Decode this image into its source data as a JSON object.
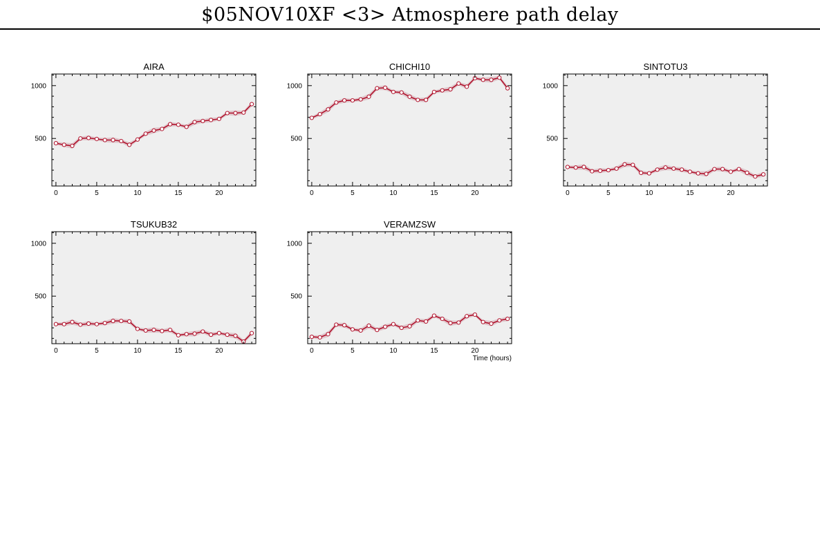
{
  "page_title": "$05NOV10XF <3>  Atmosphere path delay",
  "colors": {
    "panel_bg": "#efefef",
    "line": "#b0102a",
    "band": "#d9b9c0",
    "marker_fill": "#ffffff"
  },
  "chart_data": [
    {
      "type": "line",
      "title": "AIRA",
      "xlabel": "",
      "ylabel": "",
      "xlim": [
        -0.5,
        24.5
      ],
      "ylim": [
        50,
        1110
      ],
      "xticks": [
        0,
        5,
        10,
        15,
        20
      ],
      "yticks": [
        500,
        1000
      ],
      "x": [
        0,
        1,
        2,
        3,
        4,
        5,
        6,
        7,
        8,
        9,
        10,
        11,
        12,
        13,
        14,
        15,
        16,
        17,
        18,
        19,
        20,
        21,
        22,
        23,
        24
      ],
      "y": [
        455,
        440,
        430,
        500,
        505,
        495,
        485,
        485,
        475,
        440,
        490,
        545,
        575,
        590,
        635,
        630,
        610,
        655,
        665,
        675,
        685,
        740,
        740,
        745,
        825
      ]
    },
    {
      "type": "line",
      "title": "CHICHI10",
      "xlabel": "",
      "ylabel": "",
      "xlim": [
        -0.5,
        24.5
      ],
      "ylim": [
        50,
        1110
      ],
      "xticks": [
        0,
        5,
        10,
        15,
        20
      ],
      "yticks": [
        500,
        1000
      ],
      "x": [
        0,
        1,
        2,
        3,
        4,
        5,
        6,
        7,
        8,
        9,
        10,
        11,
        12,
        13,
        14,
        15,
        16,
        17,
        18,
        19,
        20,
        21,
        22,
        23,
        24
      ],
      "y": [
        695,
        730,
        775,
        840,
        860,
        860,
        870,
        895,
        975,
        980,
        940,
        935,
        895,
        865,
        865,
        940,
        955,
        965,
        1020,
        990,
        1070,
        1055,
        1055,
        1075,
        975
      ]
    },
    {
      "type": "line",
      "title": "SINTOTU3",
      "xlabel": "",
      "ylabel": "",
      "xlim": [
        -0.5,
        24.5
      ],
      "ylim": [
        50,
        1110
      ],
      "xticks": [
        0,
        5,
        10,
        15,
        20
      ],
      "yticks": [
        500,
        1000
      ],
      "x": [
        0,
        1,
        2,
        3,
        4,
        5,
        6,
        7,
        8,
        9,
        10,
        11,
        12,
        13,
        14,
        15,
        16,
        17,
        18,
        19,
        20,
        21,
        22,
        23,
        24
      ],
      "y": [
        230,
        225,
        230,
        190,
        195,
        200,
        215,
        255,
        250,
        175,
        170,
        205,
        225,
        215,
        205,
        185,
        170,
        165,
        210,
        210,
        185,
        210,
        175,
        140,
        160
      ]
    },
    {
      "type": "line",
      "title": "TSUKUB32",
      "xlabel": "",
      "ylabel": "",
      "xlim": [
        -0.5,
        24.5
      ],
      "ylim": [
        50,
        1110
      ],
      "xticks": [
        0,
        5,
        10,
        15,
        20
      ],
      "yticks": [
        500,
        1000
      ],
      "x": [
        0,
        1,
        2,
        3,
        4,
        5,
        6,
        7,
        8,
        9,
        10,
        11,
        12,
        13,
        14,
        15,
        16,
        17,
        18,
        19,
        20,
        21,
        22,
        23,
        24
      ],
      "y": [
        235,
        235,
        255,
        230,
        240,
        235,
        245,
        265,
        265,
        260,
        190,
        175,
        180,
        170,
        180,
        130,
        140,
        145,
        165,
        135,
        150,
        135,
        125,
        70,
        150
      ]
    },
    {
      "type": "line",
      "title": "VERAMZSW",
      "xlabel": "Time (hours)",
      "ylabel": "",
      "xlim": [
        -0.5,
        24.5
      ],
      "ylim": [
        50,
        1110
      ],
      "xticks": [
        0,
        5,
        10,
        15,
        20
      ],
      "yticks": [
        500,
        1000
      ],
      "x": [
        0,
        1,
        2,
        3,
        4,
        5,
        6,
        7,
        8,
        9,
        10,
        11,
        12,
        13,
        14,
        15,
        16,
        17,
        18,
        19,
        20,
        21,
        22,
        23,
        24
      ],
      "y": [
        115,
        110,
        140,
        230,
        225,
        185,
        175,
        220,
        180,
        210,
        235,
        200,
        215,
        270,
        260,
        315,
        285,
        245,
        250,
        310,
        325,
        255,
        240,
        270,
        285
      ]
    }
  ]
}
